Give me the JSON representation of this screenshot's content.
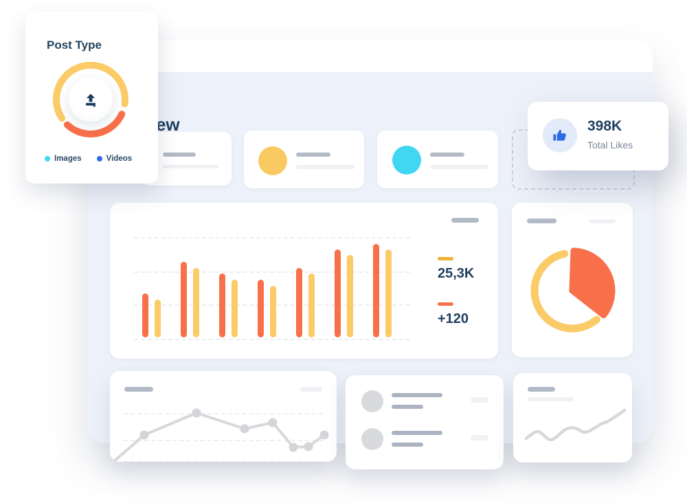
{
  "post_type_card": {
    "title": "Post Type",
    "legend": [
      {
        "label": "Images",
        "color": "#41d6f2"
      },
      {
        "label": "Videos",
        "color": "#2d6be4"
      }
    ],
    "donut": {
      "arcs": [
        {
          "name": "images",
          "color": "#facb66",
          "start": 237,
          "end": 457
        },
        {
          "name": "videos",
          "color": "#f8704a",
          "start": 115,
          "end": 223
        }
      ]
    }
  },
  "dashboard": {
    "section_title": "Overview",
    "total_likes_card": {
      "value": "398K",
      "label": "Total Likes",
      "icon": "thumbs-up-icon",
      "accent": "#2d6be4",
      "icon_bg": "#e3ebfa"
    },
    "stat_cards": {
      "card2_circle_color": "#f9ca62",
      "card3_circle_color": "#41d6f2"
    },
    "bar_chart_card": {
      "chart": {
        "type": "bar",
        "series": [
          {
            "name": "series-orange",
            "color": "#f8704a",
            "values": [
              64,
              110,
              93,
              84,
              101,
              128,
              136
            ]
          },
          {
            "name": "series-yellow",
            "color": "#facb66",
            "values": [
              55,
              101,
              84,
              75,
              93,
              120,
              128
            ]
          }
        ]
      },
      "legend": [
        {
          "label": "25,3K",
          "color": "#f0b232"
        },
        {
          "label": "+120",
          "color": "#f8704a"
        }
      ]
    },
    "pie_chart_card": {
      "slices": [
        {
          "name": "orange-slice",
          "type": "slice",
          "color": "#f8704a",
          "start": 2,
          "end": 128
        },
        {
          "name": "yellow-ring",
          "type": "ring",
          "color": "#facb66",
          "start": 140,
          "end": 348
        }
      ]
    },
    "line_chart_card": {
      "color": "#d8d8db",
      "points": [
        [
          5,
          132
        ],
        [
          50,
          93
        ],
        [
          126,
          61
        ],
        [
          196,
          84
        ],
        [
          237,
          75
        ],
        [
          267,
          111
        ],
        [
          289,
          110
        ],
        [
          312,
          93
        ]
      ]
    },
    "wave_chart_card": {
      "color": "#d8d8db",
      "points": [
        [
          19,
          95
        ],
        [
          36,
          85
        ],
        [
          55,
          97
        ],
        [
          76,
          82
        ],
        [
          90,
          80
        ],
        [
          106,
          86
        ],
        [
          128,
          74
        ],
        [
          138,
          70
        ],
        [
          158,
          57
        ],
        [
          162,
          54
        ]
      ]
    }
  }
}
